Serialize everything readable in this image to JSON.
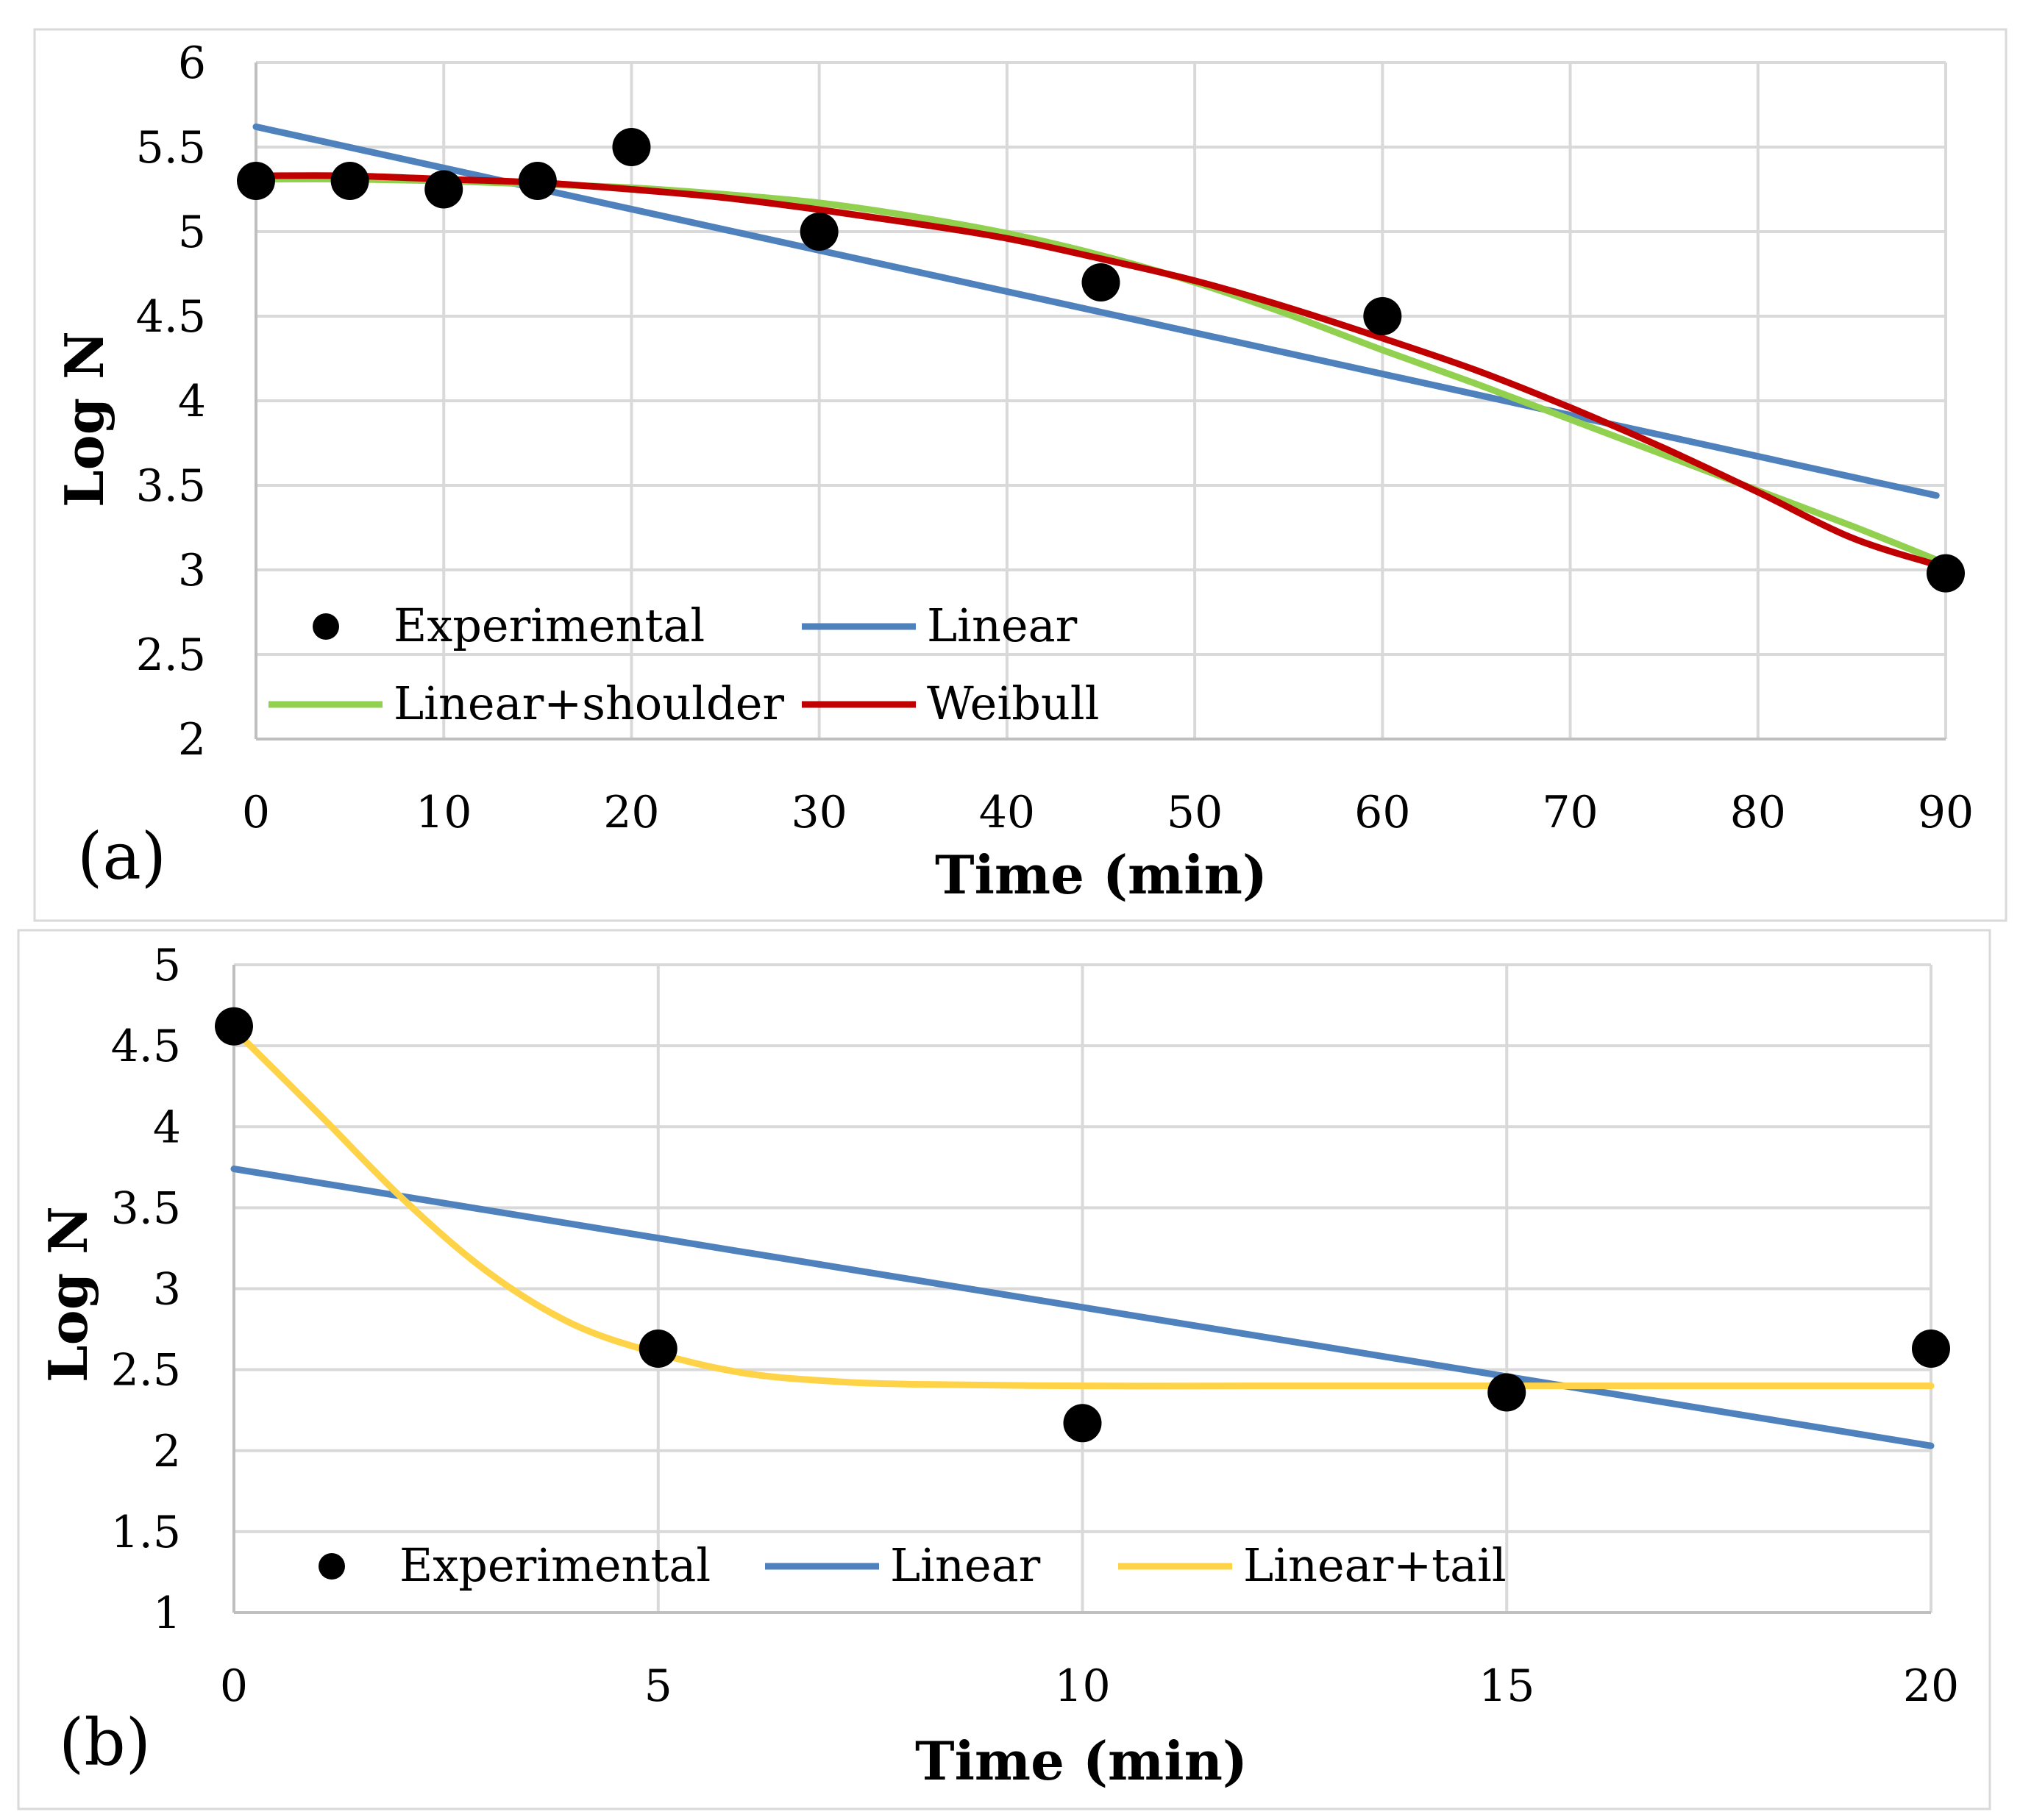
{
  "colors": {
    "grid": "#d9d9d9",
    "axis": "#bfbfbf",
    "frame": "#d9d9d9",
    "experimental": "#000000",
    "linear": "#4f81bd",
    "linear_shoulder": "#92d050",
    "weibull": "#c00000",
    "linear_tail": "#ffd347"
  },
  "chart_data": [
    {
      "id": "a",
      "type": "line",
      "panel_label": "(a)",
      "xlabel": "Time (min)",
      "ylabel": "Log N",
      "xlim": [
        0,
        90
      ],
      "ylim": [
        2,
        6
      ],
      "xticks": [
        0,
        10,
        20,
        30,
        40,
        50,
        60,
        70,
        80,
        90
      ],
      "xtick_labels": [
        "0",
        "10",
        "20",
        "30",
        "40",
        "50",
        "60",
        "70",
        "80",
        "90"
      ],
      "yticks": [
        2,
        2.5,
        3,
        3.5,
        4,
        4.5,
        5,
        5.5,
        6
      ],
      "ytick_labels": [
        "2",
        "2.5",
        "3",
        "3.5",
        "4",
        "4.5",
        "5",
        "5.5",
        "6"
      ],
      "grid": true,
      "legend_position": "bottom-left",
      "series": [
        {
          "name": "Experimental",
          "kind": "scatter",
          "color_key": "experimental",
          "x": [
            0,
            5,
            10,
            15,
            20,
            30,
            45,
            60,
            90
          ],
          "y": [
            5.3,
            5.3,
            5.25,
            5.3,
            5.5,
            5.0,
            4.7,
            4.5,
            2.98
          ]
        },
        {
          "name": "Linear",
          "kind": "line",
          "color_key": "linear",
          "x": [
            0,
            89.5
          ],
          "y": [
            5.62,
            3.44
          ]
        },
        {
          "name": "Linear+shoulder",
          "kind": "line",
          "color_key": "linear_shoulder",
          "x": [
            0,
            5,
            10,
            15,
            20,
            25,
            30,
            35,
            40,
            45,
            50,
            55,
            60,
            65,
            70,
            75,
            80,
            85,
            89.5
          ],
          "y": [
            5.31,
            5.31,
            5.3,
            5.28,
            5.26,
            5.22,
            5.17,
            5.09,
            4.99,
            4.86,
            4.7,
            4.51,
            4.3,
            4.1,
            3.89,
            3.68,
            3.47,
            3.26,
            3.06
          ]
        },
        {
          "name": "Weibull",
          "kind": "line",
          "color_key": "weibull",
          "x": [
            0,
            5,
            10,
            15,
            20,
            25,
            30,
            35,
            40,
            45,
            50,
            55,
            60,
            65,
            70,
            75,
            80,
            85,
            89.5
          ],
          "y": [
            5.33,
            5.33,
            5.31,
            5.29,
            5.25,
            5.2,
            5.13,
            5.05,
            4.96,
            4.84,
            4.71,
            4.55,
            4.37,
            4.18,
            3.96,
            3.72,
            3.46,
            3.19,
            3.03
          ]
        }
      ]
    },
    {
      "id": "b",
      "type": "line",
      "panel_label": "(b)",
      "xlabel": "Time (min)",
      "ylabel": "Log N",
      "xlim": [
        0,
        20
      ],
      "ylim": [
        1,
        5
      ],
      "xticks": [
        0,
        5,
        10,
        15,
        20
      ],
      "xtick_labels": [
        "0",
        "5",
        "10",
        "15",
        "20"
      ],
      "yticks": [
        1,
        1.5,
        2,
        2.5,
        3,
        3.5,
        4,
        4.5,
        5
      ],
      "ytick_labels": [
        "1",
        "1.5",
        "2",
        "2.5",
        "3",
        "3.5",
        "4",
        "4.5",
        "5"
      ],
      "grid": true,
      "legend_position": "bottom-left",
      "series": [
        {
          "name": "Experimental",
          "kind": "scatter",
          "color_key": "experimental",
          "x": [
            0,
            5,
            10,
            15,
            20
          ],
          "y": [
            4.62,
            2.63,
            2.17,
            2.36,
            2.63
          ]
        },
        {
          "name": "Linear",
          "kind": "line",
          "color_key": "linear",
          "x": [
            0,
            20
          ],
          "y": [
            3.74,
            2.03
          ]
        },
        {
          "name": "Linear+tail",
          "kind": "line",
          "color_key": "linear_tail",
          "x": [
            0,
            1,
            2,
            3,
            4,
            5,
            6,
            7,
            8,
            10,
            12,
            15,
            20
          ],
          "y": [
            4.6,
            4.08,
            3.55,
            3.1,
            2.78,
            2.6,
            2.48,
            2.43,
            2.41,
            2.4,
            2.4,
            2.4,
            2.4
          ]
        }
      ]
    }
  ]
}
